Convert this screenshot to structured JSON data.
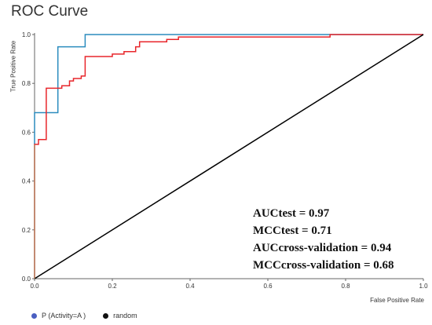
{
  "chart_data": {
    "type": "line",
    "title": "ROC Curve",
    "xlabel": "False Positive Rate",
    "ylabel": "True Positive Rate",
    "xlim": [
      0,
      1
    ],
    "ylim": [
      0,
      1
    ],
    "x_ticks": [
      "0.0",
      "0.2",
      "0.4",
      "0.6",
      "0.8",
      "1.0"
    ],
    "y_ticks": [
      "0.0",
      "0.2",
      "0.4",
      "0.6",
      "0.8",
      "1.0"
    ],
    "grid": false,
    "legend_position": "bottom-left",
    "legend": [
      {
        "label": "P (Activity=A )",
        "color": "#4a5fc1"
      },
      {
        "label": "random",
        "color": "#111111"
      }
    ],
    "series": [
      {
        "color": "#2b8cbe",
        "x": [
          0,
          0,
          0.06,
          0.06,
          0.07,
          0.13,
          0.13,
          0.76,
          1.0
        ],
        "y": [
          0,
          0.68,
          0.68,
          0.95,
          0.95,
          0.95,
          1.0,
          1.0,
          1.0
        ]
      },
      {
        "color": "#e8262b",
        "x": [
          0,
          0,
          0.01,
          0.01,
          0.03,
          0.03,
          0.07,
          0.07,
          0.09,
          0.09,
          0.1,
          0.1,
          0.12,
          0.12,
          0.13,
          0.13,
          0.2,
          0.2,
          0.23,
          0.23,
          0.26,
          0.26,
          0.27,
          0.27,
          0.34,
          0.34,
          0.37,
          0.37,
          0.76,
          0.76,
          1.0
        ],
        "y": [
          0,
          0.55,
          0.55,
          0.57,
          0.57,
          0.78,
          0.78,
          0.79,
          0.79,
          0.81,
          0.81,
          0.82,
          0.82,
          0.83,
          0.83,
          0.91,
          0.91,
          0.92,
          0.92,
          0.93,
          0.93,
          0.95,
          0.95,
          0.97,
          0.97,
          0.98,
          0.98,
          0.99,
          0.99,
          1.0,
          1.0
        ]
      },
      {
        "color": "#000000",
        "x": [
          0,
          1
        ],
        "y": [
          0,
          1
        ]
      }
    ],
    "annotations": [
      "AUCtest = 0.97",
      "MCCtest = 0.71",
      "AUCcross-validation = 0.94",
      "MCCcross-validation = 0.68"
    ]
  }
}
